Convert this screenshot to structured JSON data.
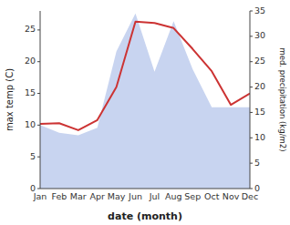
{
  "chart_data": {
    "type": "line",
    "categories": [
      "Jan",
      "Feb",
      "Mar",
      "Apr",
      "May",
      "Jun",
      "Jul",
      "Aug",
      "Sep",
      "Oct",
      "Nov",
      "Dec"
    ],
    "x_label": "date (month)",
    "y_label": "max temp (C)",
    "y2_label": "med. precipitation (kg/m2)",
    "series": [
      {
        "type": "area",
        "axis": "y2",
        "color": "#c8d4f0",
        "values": [
          12.5,
          11.0,
          10.5,
          12.0,
          27.0,
          34.5,
          23.0,
          33.0,
          23.5,
          16.0,
          16.0,
          16.0
        ]
      },
      {
        "type": "line",
        "color": "#cc3333",
        "values": [
          10.2,
          10.3,
          9.2,
          10.8,
          16.0,
          26.3,
          26.1,
          25.3,
          22.0,
          18.5,
          13.2,
          15.0
        ]
      }
    ],
    "ylim": [
      0,
      28
    ],
    "yticks": [
      0,
      5,
      10,
      15,
      20,
      25
    ],
    "y2lim": [
      0,
      35
    ],
    "y2ticks": [
      0,
      5,
      10,
      15,
      20,
      25,
      30,
      35
    ],
    "grid": false
  }
}
